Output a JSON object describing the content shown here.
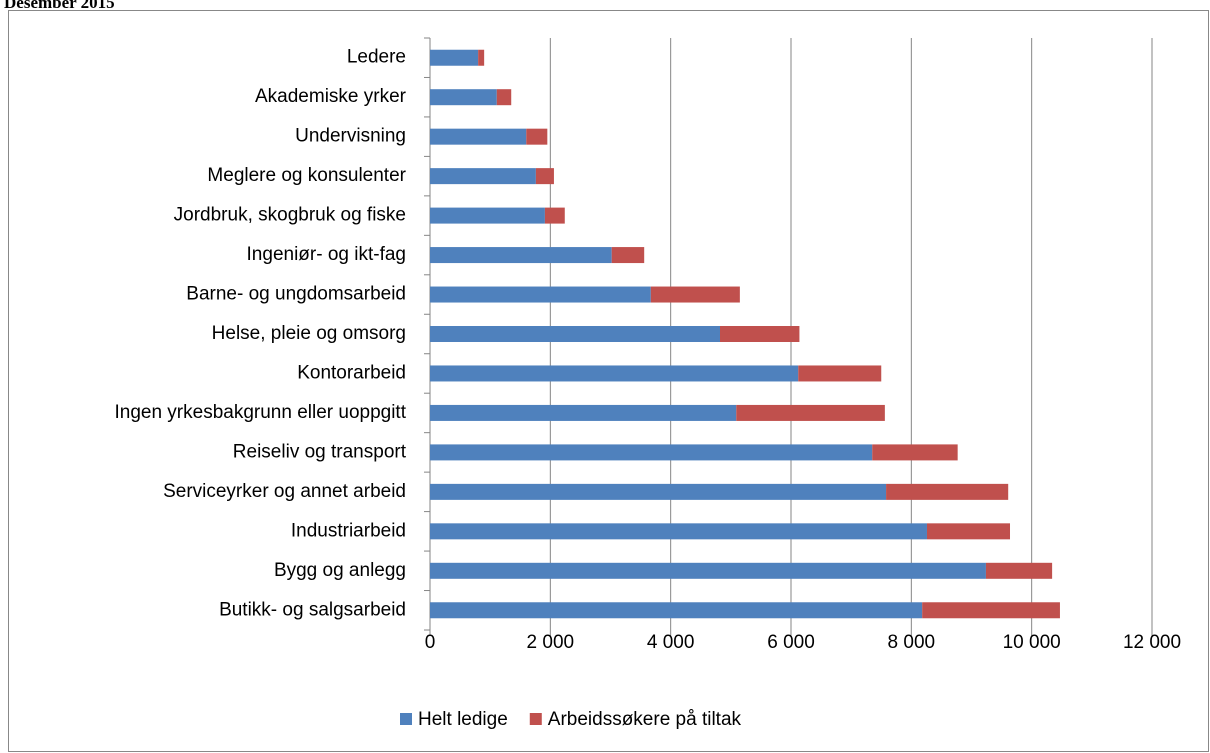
{
  "chart_data": {
    "type": "stacked-bar-horizontal",
    "title": "Desember 2015",
    "categories": [
      "Ledere",
      "Akademiske yrker",
      "Undervisning",
      "Meglere og konsulenter",
      "Jordbruk, skogbruk og fiske",
      "Ingeniør- og ikt-fag",
      "Barne- og ungdomsarbeid",
      "Helse, pleie og omsorg",
      "Kontorarbeid",
      "Ingen yrkesbakgrunn eller uoppgitt",
      "Reiseliv og transport",
      "Serviceyrker og annet arbeid",
      "Industriarbeid",
      "Bygg og anlegg",
      "Butikk- og salgsarbeid"
    ],
    "series": [
      {
        "name": "Helt ledige",
        "color": "#4f81bd",
        "values": [
          800,
          1110,
          1600,
          1760,
          1910,
          3020,
          3670,
          4820,
          6120,
          5090,
          7350,
          7580,
          8260,
          9240,
          8180
        ]
      },
      {
        "name": "Arbeidssøkere på tiltak",
        "color": "#c0504d",
        "values": [
          100,
          240,
          350,
          300,
          330,
          540,
          1480,
          1320,
          1380,
          2470,
          1420,
          2030,
          1380,
          1100,
          2290
        ]
      }
    ],
    "xlim": [
      0,
      12000
    ],
    "xticks": [
      0,
      {
        "value": 2000,
        "label": "2 000"
      },
      {
        "value": 4000,
        "label": "4 000"
      },
      {
        "value": 6000,
        "label": "6 000"
      },
      {
        "value": 8000,
        "label": "8 000"
      },
      {
        "value": 10000,
        "label": "10 000"
      },
      {
        "value": 12000,
        "label": "12 000"
      }
    ],
    "grid": true,
    "legend": "bottom"
  }
}
